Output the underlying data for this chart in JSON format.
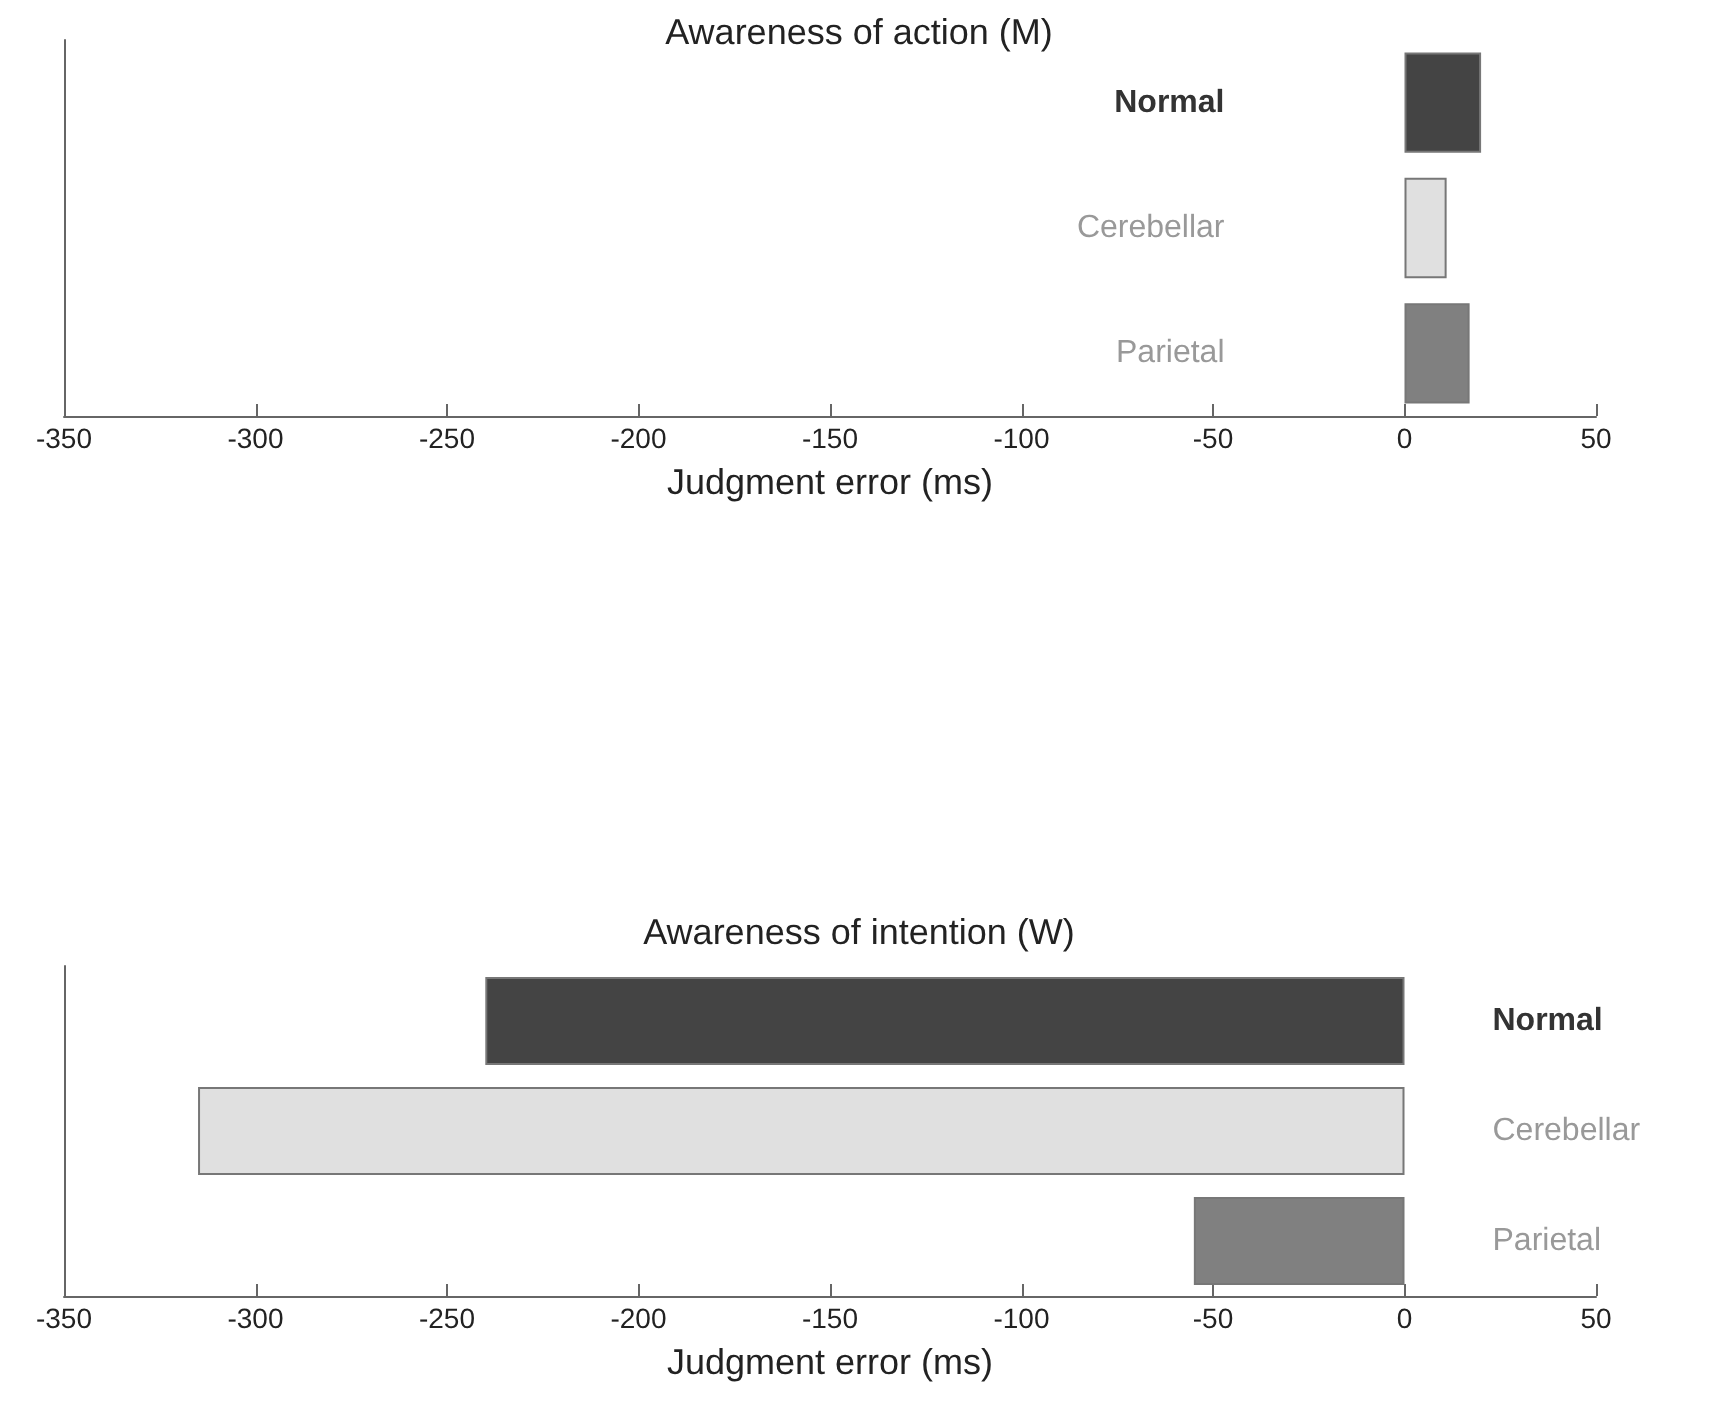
{
  "chart_data": [
    {
      "type": "bar",
      "orientation": "horizontal",
      "title": "Awareness of action (M)",
      "xlabel": "Judgment error (ms)",
      "categories": [
        "Normal",
        "Cerebellar",
        "Parietal"
      ],
      "values": [
        20,
        11,
        17
      ],
      "colors": [
        "#444444",
        "#e0e0e0",
        "#808080"
      ],
      "xlim": [
        -350,
        50
      ],
      "xticks": [
        -350,
        -300,
        -250,
        -200,
        -150,
        -100,
        -50,
        0,
        50
      ],
      "grid": false
    },
    {
      "type": "bar",
      "orientation": "horizontal",
      "title": "Awareness of intention (W)",
      "xlabel": "Judgment error (ms)",
      "categories": [
        "Normal",
        "Cerebellar",
        "Parietal"
      ],
      "values": [
        -240,
        -315,
        -55
      ],
      "colors": [
        "#444444",
        "#e0e0e0",
        "#808080"
      ],
      "xlim": [
        -350,
        50
      ],
      "xticks": [
        -350,
        -300,
        -250,
        -200,
        -150,
        -100,
        -50,
        0,
        50
      ],
      "grid": false
    }
  ]
}
